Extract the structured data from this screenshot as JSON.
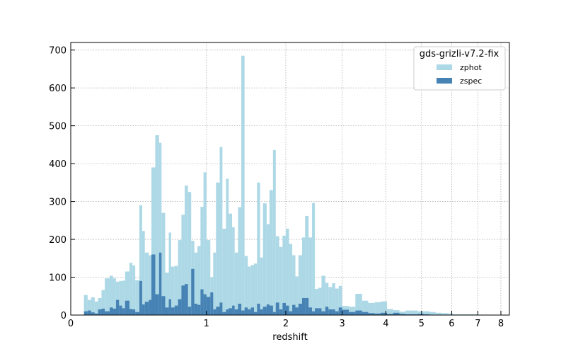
{
  "chart_data": {
    "type": "bar",
    "title": "",
    "xlabel": "redshift",
    "ylabel": "",
    "x_scale": "log(1+z)",
    "xlim": [
      0,
      8.4
    ],
    "ylim": [
      0,
      720
    ],
    "x_ticks": [
      0,
      1,
      2,
      3,
      4,
      5,
      6,
      7,
      8
    ],
    "y_ticks": [
      0,
      100,
      200,
      300,
      400,
      500,
      600,
      700
    ],
    "grid": true,
    "legend": {
      "title": "gds-grizli-v7.2-fix",
      "placement": "top-right"
    },
    "colors": {
      "zphot": "#add8e6",
      "zspec": "#4682b4"
    },
    "series": [
      {
        "name": "zphot",
        "bins": [
          [
            0.07,
            0.09,
            53
          ],
          [
            0.09,
            0.11,
            40
          ],
          [
            0.11,
            0.13,
            47
          ],
          [
            0.13,
            0.15,
            36
          ],
          [
            0.15,
            0.17,
            45
          ],
          [
            0.17,
            0.19,
            66
          ],
          [
            0.19,
            0.22,
            97
          ],
          [
            0.22,
            0.24,
            104
          ],
          [
            0.24,
            0.26,
            97
          ],
          [
            0.26,
            0.28,
            88
          ],
          [
            0.28,
            0.3,
            90
          ],
          [
            0.3,
            0.32,
            91
          ],
          [
            0.32,
            0.35,
            115
          ],
          [
            0.35,
            0.37,
            138
          ],
          [
            0.37,
            0.39,
            131
          ],
          [
            0.39,
            0.42,
            92
          ],
          [
            0.42,
            0.44,
            290
          ],
          [
            0.44,
            0.46,
            222
          ],
          [
            0.46,
            0.49,
            165
          ],
          [
            0.49,
            0.51,
            158
          ],
          [
            0.51,
            0.54,
            390
          ],
          [
            0.54,
            0.57,
            475
          ],
          [
            0.57,
            0.59,
            455
          ],
          [
            0.59,
            0.62,
            270
          ],
          [
            0.62,
            0.65,
            112
          ],
          [
            0.65,
            0.67,
            218
          ],
          [
            0.67,
            0.7,
            128
          ],
          [
            0.7,
            0.73,
            130
          ],
          [
            0.73,
            0.76,
            198
          ],
          [
            0.76,
            0.79,
            265
          ],
          [
            0.79,
            0.82,
            342
          ],
          [
            0.82,
            0.85,
            325
          ],
          [
            0.85,
            0.88,
            196
          ],
          [
            0.88,
            0.91,
            165
          ],
          [
            0.91,
            0.94,
            182
          ],
          [
            0.94,
            0.97,
            286
          ],
          [
            0.97,
            1.0,
            377
          ],
          [
            1.0,
            1.04,
            198
          ],
          [
            1.04,
            1.07,
            100
          ],
          [
            1.07,
            1.1,
            165
          ],
          [
            1.1,
            1.14,
            350
          ],
          [
            1.14,
            1.17,
            444
          ],
          [
            1.17,
            1.21,
            228
          ],
          [
            1.21,
            1.24,
            360
          ],
          [
            1.24,
            1.28,
            268
          ],
          [
            1.28,
            1.31,
            232
          ],
          [
            1.31,
            1.35,
            165
          ],
          [
            1.35,
            1.39,
            285
          ],
          [
            1.39,
            1.43,
            685
          ],
          [
            1.43,
            1.47,
            156
          ],
          [
            1.47,
            1.51,
            128
          ],
          [
            1.51,
            1.55,
            132
          ],
          [
            1.55,
            1.59,
            136
          ],
          [
            1.59,
            1.63,
            350
          ],
          [
            1.63,
            1.67,
            152
          ],
          [
            1.67,
            1.72,
            295
          ],
          [
            1.72,
            1.76,
            240
          ],
          [
            1.76,
            1.81,
            330
          ],
          [
            1.81,
            1.85,
            436
          ],
          [
            1.85,
            1.9,
            208
          ],
          [
            1.9,
            1.95,
            180
          ],
          [
            1.95,
            2.0,
            210
          ],
          [
            2.0,
            2.05,
            228
          ],
          [
            2.05,
            2.1,
            188
          ],
          [
            2.1,
            2.15,
            158
          ],
          [
            2.15,
            2.2,
            102
          ],
          [
            2.2,
            2.26,
            158
          ],
          [
            2.26,
            2.31,
            205
          ],
          [
            2.31,
            2.37,
            262
          ],
          [
            2.37,
            2.43,
            205
          ],
          [
            2.43,
            2.48,
            296
          ],
          [
            2.48,
            2.54,
            69
          ],
          [
            2.54,
            2.6,
            72
          ],
          [
            2.6,
            2.67,
            104
          ],
          [
            2.67,
            2.73,
            85
          ],
          [
            2.73,
            2.8,
            74
          ],
          [
            2.8,
            2.86,
            84
          ],
          [
            2.86,
            2.93,
            70
          ],
          [
            2.93,
            3.0,
            77
          ],
          [
            3.0,
            3.14,
            24
          ],
          [
            3.14,
            3.28,
            22
          ],
          [
            3.28,
            3.43,
            56
          ],
          [
            3.43,
            3.57,
            38
          ],
          [
            3.57,
            3.72,
            32
          ],
          [
            3.72,
            3.87,
            34
          ],
          [
            3.87,
            4.03,
            36
          ],
          [
            4.03,
            4.19,
            16
          ],
          [
            4.19,
            4.36,
            13
          ],
          [
            4.36,
            4.53,
            9
          ],
          [
            4.53,
            4.7,
            12
          ],
          [
            4.7,
            4.88,
            12
          ],
          [
            4.88,
            5.07,
            10
          ],
          [
            5.07,
            5.26,
            10
          ],
          [
            5.26,
            5.45,
            8
          ],
          [
            5.45,
            5.65,
            6
          ],
          [
            5.65,
            5.85,
            5
          ],
          [
            5.85,
            6.06,
            4
          ],
          [
            6.06,
            6.5,
            2
          ],
          [
            6.5,
            7.0,
            2
          ],
          [
            7.0,
            7.5,
            1
          ]
        ]
      },
      {
        "name": "zspec",
        "bins": [
          [
            0.07,
            0.09,
            10
          ],
          [
            0.09,
            0.11,
            12
          ],
          [
            0.11,
            0.13,
            7
          ],
          [
            0.13,
            0.15,
            4
          ],
          [
            0.15,
            0.17,
            15
          ],
          [
            0.17,
            0.19,
            17
          ],
          [
            0.19,
            0.22,
            10
          ],
          [
            0.22,
            0.24,
            20
          ],
          [
            0.24,
            0.26,
            17
          ],
          [
            0.26,
            0.28,
            40
          ],
          [
            0.28,
            0.3,
            25
          ],
          [
            0.3,
            0.32,
            18
          ],
          [
            0.32,
            0.35,
            38
          ],
          [
            0.35,
            0.37,
            16
          ],
          [
            0.37,
            0.39,
            15
          ],
          [
            0.39,
            0.42,
            8
          ],
          [
            0.42,
            0.44,
            90
          ],
          [
            0.44,
            0.46,
            28
          ],
          [
            0.46,
            0.49,
            35
          ],
          [
            0.49,
            0.51,
            40
          ],
          [
            0.51,
            0.54,
            160
          ],
          [
            0.54,
            0.57,
            55
          ],
          [
            0.57,
            0.59,
            165
          ],
          [
            0.59,
            0.62,
            50
          ],
          [
            0.62,
            0.65,
            20
          ],
          [
            0.65,
            0.67,
            42
          ],
          [
            0.67,
            0.7,
            20
          ],
          [
            0.7,
            0.73,
            25
          ],
          [
            0.73,
            0.76,
            42
          ],
          [
            0.76,
            0.79,
            78
          ],
          [
            0.79,
            0.82,
            82
          ],
          [
            0.82,
            0.85,
            22
          ],
          [
            0.85,
            0.88,
            122
          ],
          [
            0.88,
            0.91,
            30
          ],
          [
            0.91,
            0.94,
            27
          ],
          [
            0.94,
            0.97,
            68
          ],
          [
            0.97,
            1.0,
            55
          ],
          [
            1.0,
            1.04,
            48
          ],
          [
            1.04,
            1.07,
            60
          ],
          [
            1.07,
            1.1,
            15
          ],
          [
            1.1,
            1.14,
            22
          ],
          [
            1.14,
            1.17,
            33
          ],
          [
            1.17,
            1.21,
            8
          ],
          [
            1.21,
            1.24,
            15
          ],
          [
            1.24,
            1.28,
            18
          ],
          [
            1.28,
            1.31,
            25
          ],
          [
            1.31,
            1.35,
            15
          ],
          [
            1.35,
            1.39,
            30
          ],
          [
            1.39,
            1.43,
            12
          ],
          [
            1.43,
            1.47,
            20
          ],
          [
            1.47,
            1.51,
            15
          ],
          [
            1.51,
            1.55,
            20
          ],
          [
            1.55,
            1.59,
            8
          ],
          [
            1.59,
            1.63,
            30
          ],
          [
            1.63,
            1.67,
            15
          ],
          [
            1.67,
            1.72,
            22
          ],
          [
            1.72,
            1.76,
            28
          ],
          [
            1.76,
            1.81,
            25
          ],
          [
            1.81,
            1.85,
            8
          ],
          [
            1.85,
            1.9,
            33
          ],
          [
            1.9,
            1.95,
            15
          ],
          [
            1.95,
            2.0,
            32
          ],
          [
            2.0,
            2.05,
            25
          ],
          [
            2.05,
            2.1,
            10
          ],
          [
            2.1,
            2.15,
            27
          ],
          [
            2.15,
            2.2,
            20
          ],
          [
            2.2,
            2.26,
            30
          ],
          [
            2.26,
            2.31,
            45
          ],
          [
            2.31,
            2.37,
            45
          ],
          [
            2.37,
            2.43,
            20
          ],
          [
            2.43,
            2.48,
            10
          ],
          [
            2.48,
            2.54,
            18
          ],
          [
            2.54,
            2.6,
            18
          ],
          [
            2.6,
            2.67,
            10
          ],
          [
            2.67,
            2.73,
            22
          ],
          [
            2.73,
            2.8,
            15
          ],
          [
            2.8,
            2.86,
            15
          ],
          [
            2.86,
            2.93,
            10
          ],
          [
            2.93,
            3.0,
            20
          ],
          [
            3.0,
            3.14,
            14
          ],
          [
            3.14,
            3.28,
            8
          ],
          [
            3.28,
            3.43,
            12
          ],
          [
            3.43,
            3.57,
            8
          ],
          [
            3.57,
            3.72,
            5
          ],
          [
            3.72,
            3.87,
            4
          ],
          [
            3.87,
            4.03,
            6
          ],
          [
            4.03,
            4.19,
            3
          ],
          [
            4.19,
            4.36,
            6
          ],
          [
            4.36,
            4.53,
            3
          ],
          [
            4.53,
            4.7,
            2
          ],
          [
            4.7,
            4.88,
            2
          ],
          [
            4.88,
            5.07,
            3
          ],
          [
            5.07,
            5.26,
            2
          ],
          [
            5.26,
            5.45,
            1
          ],
          [
            5.45,
            5.65,
            1
          ]
        ]
      }
    ]
  }
}
